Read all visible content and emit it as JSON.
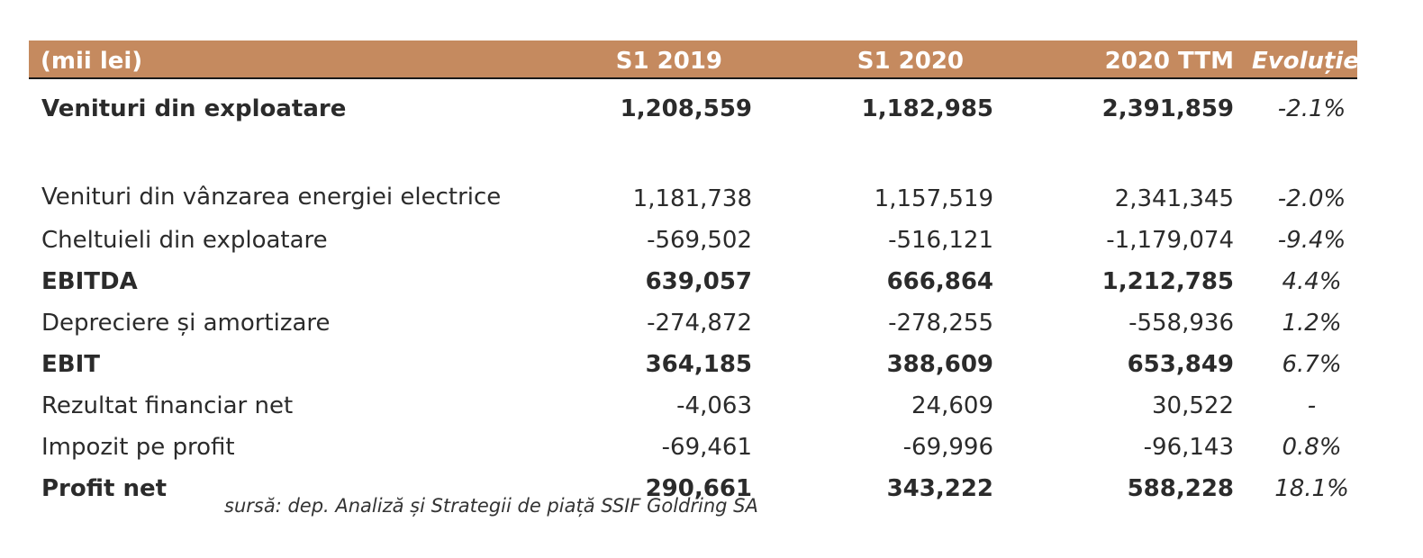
{
  "table": {
    "headers": {
      "label": "(mii lei)",
      "s1_2019": "S1 2019",
      "s1_2020": "S1 2020",
      "ttm_2020": "2020 TTM",
      "evolutie": "Evoluție"
    },
    "rows": [
      {
        "label": "Venituri din exploatare",
        "s1_2019": "1,208,559",
        "s1_2020": "1,182,985",
        "ttm_2020": "2,391,859",
        "evolutie": "-2.1%",
        "bold": true
      },
      {
        "label": "Venituri din vânzarea energiei electrice",
        "s1_2019": "1,181,738",
        "s1_2020": "1,157,519",
        "ttm_2020": "2,341,345",
        "evolutie": "-2.0%",
        "bold": false
      },
      {
        "label": "Cheltuieli din exploatare",
        "s1_2019": "-569,502",
        "s1_2020": "-516,121",
        "ttm_2020": "-1,179,074",
        "evolutie": "-9.4%",
        "bold": false
      },
      {
        "label": "EBITDA",
        "s1_2019": "639,057",
        "s1_2020": "666,864",
        "ttm_2020": "1,212,785",
        "evolutie": "4.4%",
        "bold": true
      },
      {
        "label": "Depreciere și amortizare",
        "s1_2019": "-274,872",
        "s1_2020": "-278,255",
        "ttm_2020": "-558,936",
        "evolutie": "1.2%",
        "bold": false
      },
      {
        "label": "EBIT",
        "s1_2019": "364,185",
        "s1_2020": "388,609",
        "ttm_2020": "653,849",
        "evolutie": "6.7%",
        "bold": true
      },
      {
        "label": "Rezultat financiar net",
        "s1_2019": "-4,063",
        "s1_2020": "24,609",
        "ttm_2020": "30,522",
        "evolutie": "-",
        "bold": false
      },
      {
        "label": "Impozit pe profit",
        "s1_2019": "-69,461",
        "s1_2020": "-69,996",
        "ttm_2020": "-96,143",
        "evolutie": "0.8%",
        "bold": false
      },
      {
        "label": "Profit net",
        "s1_2019": "290,661",
        "s1_2020": "343,222",
        "ttm_2020": "588,228",
        "evolutie": "18.1%",
        "bold": true
      }
    ]
  },
  "source": "sursă: dep. Analiză și Strategii de piață SSIF Goldring SA",
  "colors": {
    "header_bg": "#c58a5f",
    "header_text": "#ffffff",
    "body_text": "#2b2b2b"
  }
}
